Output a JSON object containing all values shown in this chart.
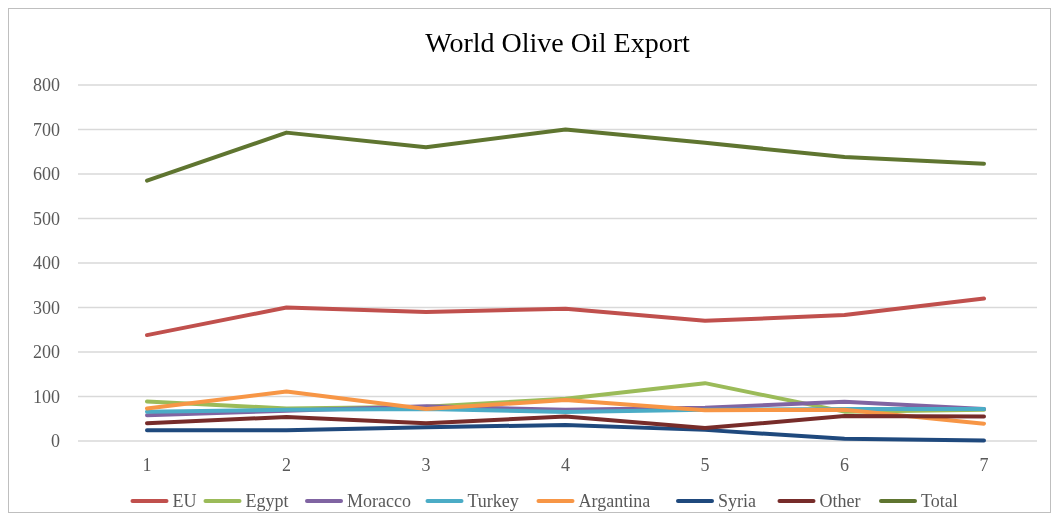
{
  "chart_data": {
    "type": "line",
    "title": "World Olive Oil Export",
    "categories": [
      "1",
      "2",
      "3",
      "4",
      "5",
      "6",
      "7"
    ],
    "ylim": [
      0,
      800
    ],
    "yticks": [
      0,
      100,
      200,
      300,
      400,
      500,
      600,
      700,
      800
    ],
    "grid": "y",
    "legend": "bottom",
    "marker": "none",
    "line_style": "solid",
    "series": [
      {
        "name": "EU",
        "color": "#c0504d",
        "values": [
          238,
          300,
          290,
          297,
          270,
          283,
          320
        ]
      },
      {
        "name": "Egypt",
        "color": "#9bbb59",
        "values": [
          89,
          73,
          77,
          95,
          130,
          66,
          70
        ]
      },
      {
        "name": "Moracco",
        "color": "#8064a2",
        "values": [
          58,
          68,
          78,
          70,
          75,
          88,
          72
        ]
      },
      {
        "name": "Turkey",
        "color": "#4bacc6",
        "values": [
          66,
          70,
          72,
          65,
          70,
          72,
          72
        ]
      },
      {
        "name": "Argantina",
        "color": "#f79646",
        "values": [
          73,
          111,
          72,
          92,
          69,
          70,
          39
        ]
      },
      {
        "name": "Syria",
        "color": "#1f497d",
        "values": [
          24,
          24,
          31,
          36,
          25,
          5,
          1
        ]
      },
      {
        "name": "Other",
        "color": "#772c2a",
        "values": [
          40,
          54,
          40,
          55,
          29,
          56,
          55
        ]
      },
      {
        "name": "Total",
        "color": "#5f7530",
        "values": [
          585,
          693,
          660,
          700,
          670,
          638,
          623
        ]
      }
    ]
  }
}
